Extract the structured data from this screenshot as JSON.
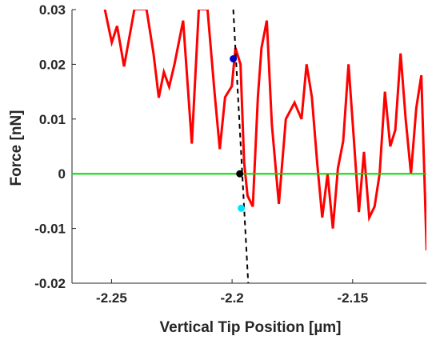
{
  "chart_data": {
    "type": "line",
    "title": "",
    "xlabel": "Vertical Tip Position [µm]",
    "ylabel": "Force [nN]",
    "xlim": [
      -2.2664,
      -2.1194
    ],
    "ylim": [
      -0.02,
      0.03
    ],
    "x_ticks": [
      {
        "value": -2.25,
        "label": "-2.25"
      },
      {
        "value": -2.2,
        "label": "-2.2"
      },
      {
        "value": -2.15,
        "label": "-2.15"
      }
    ],
    "y_ticks": [
      {
        "value": 0.03,
        "label": "0.03"
      },
      {
        "value": 0.02,
        "label": "0.02"
      },
      {
        "value": 0.01,
        "label": "0.01"
      },
      {
        "value": 0,
        "label": "0"
      },
      {
        "value": -0.01,
        "label": "-0.01"
      },
      {
        "value": -0.02,
        "label": "-0.02"
      }
    ],
    "grid": false,
    "series": [
      {
        "color": "#ff0000",
        "x": [
          -2.2528,
          -2.2499,
          -2.2477,
          -2.2448,
          -2.2405,
          -2.2384,
          -2.2377,
          -2.2355,
          -2.2326,
          -2.2304,
          -2.2283,
          -2.2261,
          -2.2239,
          -2.2203,
          -2.2167,
          -2.2138,
          -2.2102,
          -2.2073,
          -2.2051,
          -2.2029,
          -2.2001,
          -2.1986,
          -2.1965,
          -2.195,
          -2.1936,
          -2.1914,
          -2.1893,
          -2.1878,
          -2.1856,
          -2.1835,
          -2.1806,
          -2.1777,
          -2.1741,
          -2.1712,
          -2.1691,
          -2.1669,
          -2.1647,
          -2.1626,
          -2.1604,
          -2.1582,
          -2.1561,
          -2.1539,
          -2.1517,
          -2.1496,
          -2.1474,
          -2.1453,
          -2.1431,
          -2.1409,
          -2.1388,
          -2.1366,
          -2.1344,
          -2.1323,
          -2.1301,
          -2.128,
          -2.1258,
          -2.1236,
          -2.1215,
          -2.1193
        ],
        "y": [
          0.0301,
          0.024,
          0.027,
          0.0196,
          0.0301,
          0.0301,
          0.0301,
          0.0301,
          0.022,
          0.0139,
          0.0186,
          0.0159,
          0.02,
          0.028,
          0.0055,
          0.0301,
          0.0301,
          0.015,
          0.0045,
          0.014,
          0.016,
          0.023,
          0.02,
          0.0021,
          -0.004,
          -0.006,
          0.014,
          0.023,
          0.028,
          0.009,
          -0.0055,
          0.01,
          0.013,
          0.01,
          0.02,
          0.014,
          0.002,
          -0.008,
          0.0,
          -0.01,
          0.001,
          0.006,
          0.02,
          0.007,
          -0.007,
          0.004,
          -0.008,
          -0.006,
          0.0,
          0.015,
          0.005,
          0.008,
          0.022,
          0.01,
          0.0,
          0.012,
          0.018,
          -0.014
        ]
      },
      {
        "color": "#00dd00",
        "x": [
          -2.2664,
          -2.1194
        ],
        "y": [
          0,
          0
        ]
      },
      {
        "color": "#000000",
        "dashed": true,
        "x": [
          -2.1995,
          -2.1933
        ],
        "y": [
          0.03,
          -0.02
        ]
      }
    ],
    "points": [
      {
        "x": -2.1995,
        "y": 0.021,
        "color": "#0000cc"
      },
      {
        "x": -2.1968,
        "y": 0.0,
        "color": "#000000"
      },
      {
        "x": -2.1962,
        "y": -0.0063,
        "color": "#00e5ff"
      }
    ]
  }
}
